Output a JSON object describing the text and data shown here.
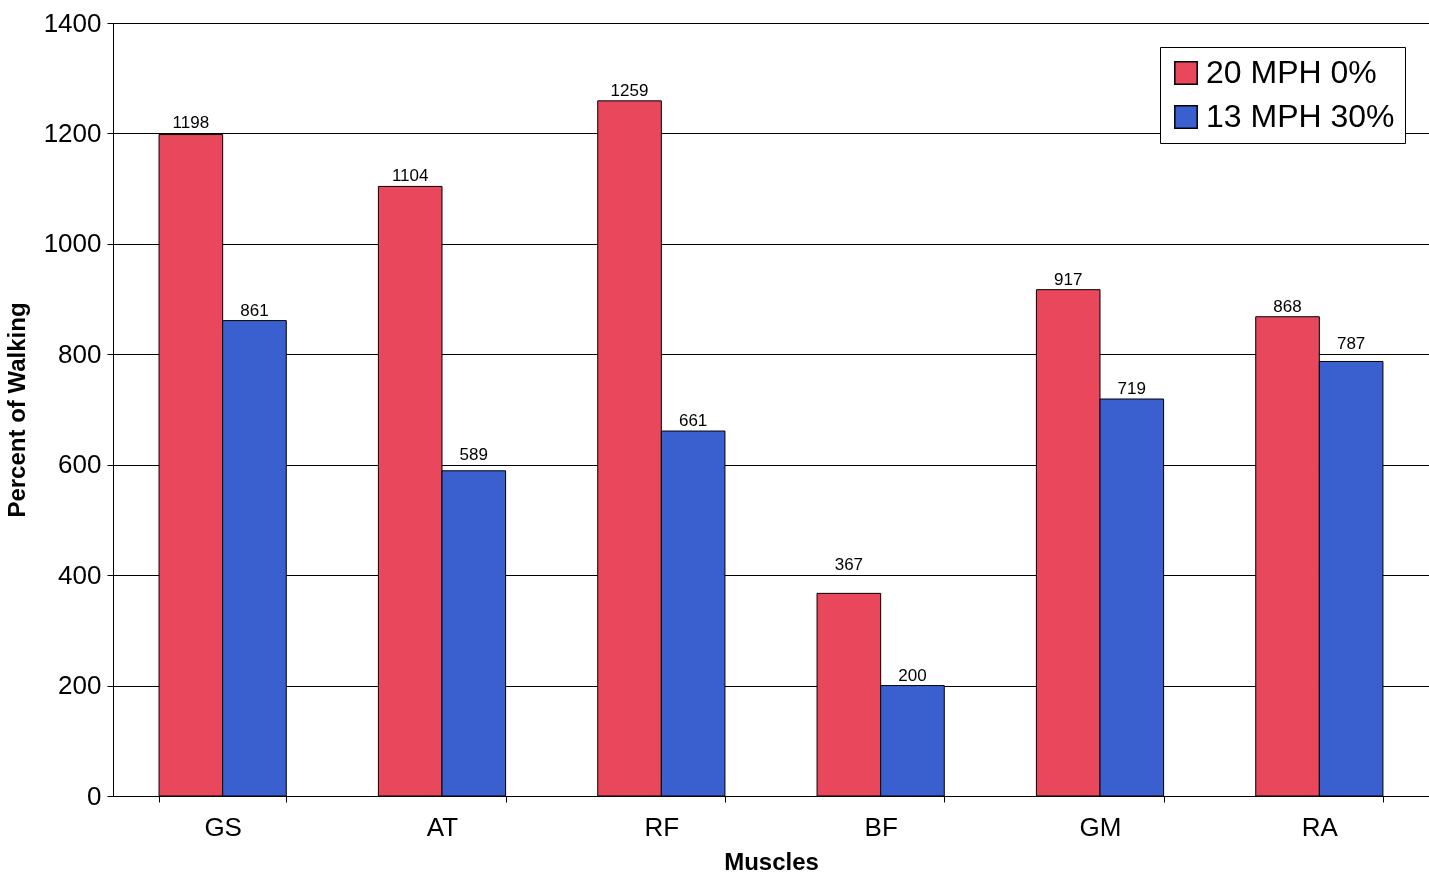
{
  "chart_data": {
    "type": "bar",
    "xlabel": "Muscles",
    "ylabel": "Percent of Walking",
    "categories": [
      "GS",
      "AT",
      "RF",
      "BF",
      "GM",
      "RA"
    ],
    "series": [
      {
        "name": "20 MPH 0%",
        "color": "#e8475c",
        "values": [
          1198,
          1104,
          1259,
          367,
          917,
          868
        ]
      },
      {
        "name": "13 MPH 30%",
        "color": "#3a60d0",
        "values": [
          861,
          589,
          661,
          200,
          719,
          787
        ]
      }
    ],
    "ylim": [
      0,
      1400
    ],
    "yticks": [
      0,
      200,
      400,
      600,
      800,
      1000,
      1200,
      1400
    ],
    "grid": "y",
    "legend": "top right",
    "data_labels": true
  }
}
